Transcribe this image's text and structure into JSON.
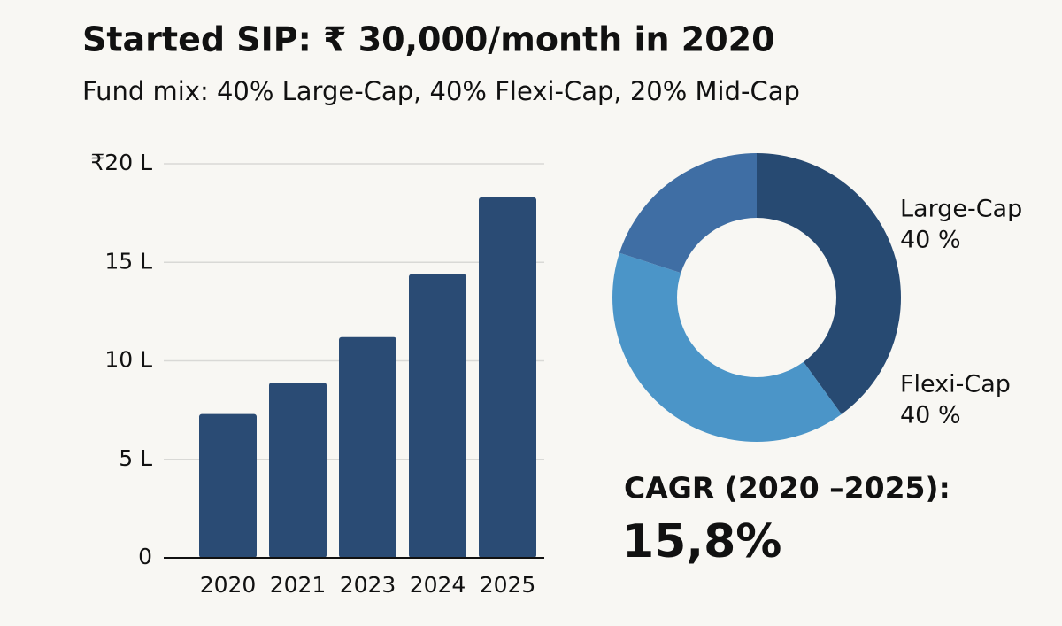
{
  "title": "Started SIP: ₹ 30,000/month in 2020",
  "subtitle": "Fund mix: 40% Large-Cap, 40% Flexi-Cap, 20% Mid-Cap",
  "chart_data": [
    {
      "type": "bar",
      "categories": [
        "2020",
        "2021",
        "2023",
        "2024",
        "2025"
      ],
      "values": [
        7.3,
        8.9,
        11.2,
        14.4,
        18.3
      ],
      "color": "#2a4b74",
      "ylim": [
        0,
        20
      ],
      "yticks": [
        0,
        {
          "value": 5,
          "label": "5 L"
        },
        {
          "value": 10,
          "label": "10 L"
        },
        {
          "value": 15,
          "label": "15 L"
        },
        {
          "value": 20,
          "label": "₹20 L"
        }
      ],
      "grid": true
    },
    {
      "type": "donut",
      "categories": [
        "Large-Cap",
        "Flexi-Cap",
        null
      ],
      "values": [
        40,
        40,
        20
      ],
      "value_labels": [
        "40 %",
        "40 %",
        null
      ],
      "colors": [
        "#274a72",
        "#4b95c8",
        "#3f6ea4"
      ],
      "annotations": [
        "CAGR (2020 –2025):",
        "15,8%"
      ]
    }
  ]
}
